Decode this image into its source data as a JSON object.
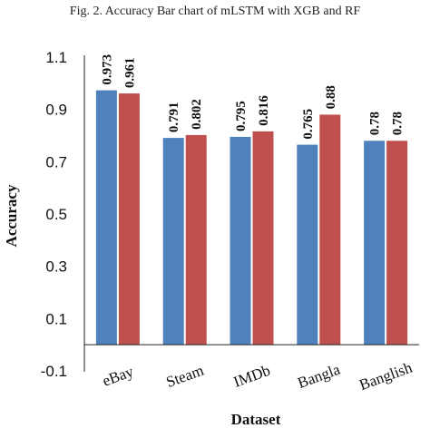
{
  "caption": "Fig. 2.  Accuracy Bar chart of mLSTM with XGB and RF",
  "chart_data": {
    "type": "bar",
    "title": "",
    "xlabel": "Dataset",
    "ylabel": "Accuracy",
    "categories": [
      "eBay",
      "Steam",
      "IMDb",
      "Bangla",
      "Banglish"
    ],
    "series": [
      {
        "values": [
          0.973,
          0.791,
          0.795,
          0.765,
          0.78
        ],
        "labels": [
          "0.973",
          "0.791",
          "0.795",
          "0.765",
          "0.78"
        ],
        "color": "#4F81BD"
      },
      {
        "values": [
          0.961,
          0.802,
          0.816,
          0.88,
          0.78
        ],
        "labels": [
          "0.961",
          "0.802",
          "0.816",
          "0.88",
          "0.78"
        ],
        "color": "#C0504D"
      }
    ],
    "yticks": [
      "1.1",
      "0.9",
      "0.7",
      "0.5",
      "0.3",
      "0.1",
      "-0.1"
    ],
    "ylim": [
      -0.1,
      1.1
    ],
    "grid": false,
    "legend": "none"
  }
}
